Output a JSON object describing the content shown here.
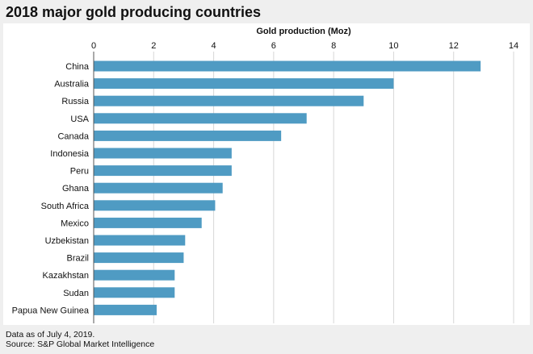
{
  "title": "2018 major gold producing countries",
  "notes": {
    "date": "Data as of July 4, 2019.",
    "source": "Source: S&P Global Market Intelligence"
  },
  "colors": {
    "bar": "#4f9bc3",
    "grid": "#d7d7d7",
    "axis": "#555555",
    "panel": "#ffffff",
    "background": "#efefef"
  },
  "chart_data": {
    "type": "bar",
    "orientation": "horizontal",
    "title": "2018 major gold producing countries",
    "xlabel": "Gold production (Moz)",
    "ylabel": "",
    "xlim": [
      0,
      14
    ],
    "xticks": [
      0,
      2,
      4,
      6,
      8,
      10,
      12,
      14
    ],
    "grid": true,
    "legend": "none",
    "categories": [
      "China",
      "Australia",
      "Russia",
      "USA",
      "Canada",
      "Indonesia",
      "Peru",
      "Ghana",
      "South Africa",
      "Mexico",
      "Uzbekistan",
      "Brazil",
      "Kazakhstan",
      "Sudan",
      "Papua New Guinea"
    ],
    "values": [
      12.9,
      10.0,
      9.0,
      7.1,
      6.25,
      4.6,
      4.6,
      4.3,
      4.05,
      3.6,
      3.05,
      3.0,
      2.7,
      2.7,
      2.1
    ]
  }
}
